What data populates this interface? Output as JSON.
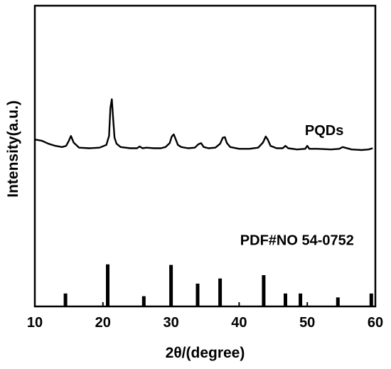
{
  "chart_data": {
    "type": "line",
    "title": "",
    "xlabel": "2θ/(degree)",
    "ylabel": "Intensity(a.u.)",
    "xlim": [
      10,
      60
    ],
    "xticks": [
      10,
      20,
      30,
      40,
      50,
      60
    ],
    "ylim": [
      0,
      100
    ],
    "yticks_shown": false,
    "grid": false,
    "annotations": [
      {
        "text": "PQDs",
        "x": 52.5,
        "y": 57
      },
      {
        "text": "PDF#NO 54-0752",
        "x": 48.5,
        "y": 20.5
      }
    ],
    "series": [
      {
        "x": [
          10.0,
          11.0,
          12.0,
          13.0,
          14.0,
          14.6,
          15.0,
          15.3,
          15.7,
          16.5,
          18.0,
          19.5,
          20.5,
          20.9,
          21.1,
          21.3,
          21.5,
          21.7,
          22.0,
          22.6,
          24.0,
          25.0,
          25.4,
          25.8,
          26.4,
          27.5,
          28.5,
          29.2,
          29.8,
          30.1,
          30.4,
          30.7,
          31.0,
          31.5,
          32.5,
          33.5,
          34.0,
          34.4,
          34.8,
          35.5,
          36.5,
          37.2,
          37.6,
          37.9,
          38.2,
          38.7,
          40.0,
          41.5,
          42.8,
          43.5,
          43.9,
          44.2,
          44.6,
          45.5,
          46.4,
          46.8,
          47.2,
          48.5,
          49.7,
          50.0,
          50.3,
          51.5,
          53.5,
          54.7,
          55.2,
          56.5,
          58.0,
          59.0,
          59.6
        ],
        "y": [
          55.5,
          55.1,
          54.1,
          53.4,
          53.0,
          53.4,
          55.1,
          56.7,
          54.5,
          52.8,
          52.6,
          52.8,
          53.7,
          56.7,
          66.0,
          68.9,
          62.3,
          56.1,
          54.1,
          53.0,
          52.6,
          52.6,
          53.2,
          52.6,
          52.8,
          52.6,
          52.6,
          53.0,
          54.3,
          56.5,
          57.2,
          55.5,
          53.7,
          53.0,
          52.6,
          52.8,
          53.9,
          54.3,
          53.0,
          52.6,
          52.8,
          54.1,
          56.1,
          56.3,
          54.3,
          53.0,
          52.4,
          52.4,
          52.8,
          54.5,
          56.5,
          55.5,
          53.4,
          52.6,
          52.6,
          53.4,
          52.6,
          52.2,
          52.4,
          53.4,
          52.4,
          52.4,
          52.2,
          52.4,
          53.0,
          52.2,
          52.0,
          52.2,
          52.6
        ]
      },
      {
        "type": "bar",
        "x": [
          14.5,
          20.7,
          26.0,
          30.0,
          33.9,
          37.2,
          43.6,
          46.8,
          49.0,
          54.5,
          59.4
        ],
        "y": [
          4.3,
          14.0,
          3.4,
          13.8,
          7.6,
          9.3,
          10.4,
          4.3,
          4.3,
          3.0,
          4.3
        ]
      }
    ]
  }
}
